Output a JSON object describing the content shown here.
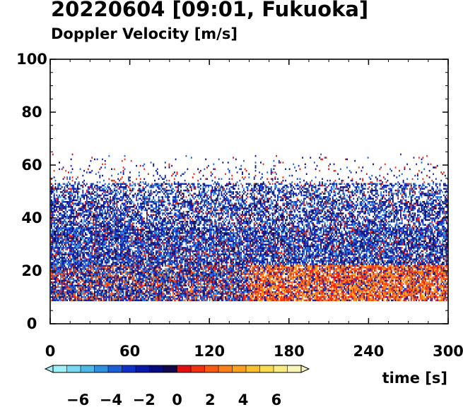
{
  "chart_data": {
    "type": "heatmap",
    "title": "20220604 [09:01, Fukuoka]",
    "subtitle": "Doppler Velocity [m/s]",
    "xlabel": "time [s]",
    "ylabel": "",
    "xlim": [
      0,
      300
    ],
    "ylim": [
      0,
      100
    ],
    "x_ticks": [
      "0",
      "60",
      "120",
      "180",
      "240",
      "300"
    ],
    "y_ticks": [
      "0",
      "20",
      "40",
      "60",
      "80",
      "100"
    ],
    "x_tick_values": [
      0,
      60,
      120,
      180,
      240,
      300
    ],
    "y_tick_values": [
      0,
      20,
      40,
      60,
      80,
      100
    ],
    "colorbar": {
      "range": [
        -7.5,
        7.5
      ],
      "tick_labels": [
        "−6",
        "−4",
        "−2",
        "0",
        "2",
        "4",
        "6"
      ],
      "tick_values": [
        -6,
        -4,
        -2,
        0,
        2,
        4,
        6
      ],
      "colors": [
        "#a0f0f8",
        "#78d8f0",
        "#50b8e8",
        "#3090e0",
        "#1c60d8",
        "#1030c8",
        "#0818a8",
        "#050a80",
        "#100848",
        "#e01010",
        "#f03010",
        "#f85a10",
        "#f88018",
        "#f8a020",
        "#f8c030",
        "#f8dc50",
        "#f8ec80",
        "#f8f4b8"
      ]
    },
    "data_summary": {
      "min_height_m": 8,
      "note_regions": [
        {
          "height_range": [
            8,
            52
          ],
          "time_range": [
            0,
            300
          ],
          "dominant_velocity": "negative (blue)"
        },
        {
          "height_range": [
            8,
            22
          ],
          "time_range": [
            150,
            300
          ],
          "dominant_velocity": "positive (red/orange, 1 to 3 m/s)"
        },
        {
          "height_range": [
            52,
            75
          ],
          "time_range": [
            0,
            300
          ],
          "dominant_velocity": "sparse mixed returns"
        }
      ]
    }
  }
}
